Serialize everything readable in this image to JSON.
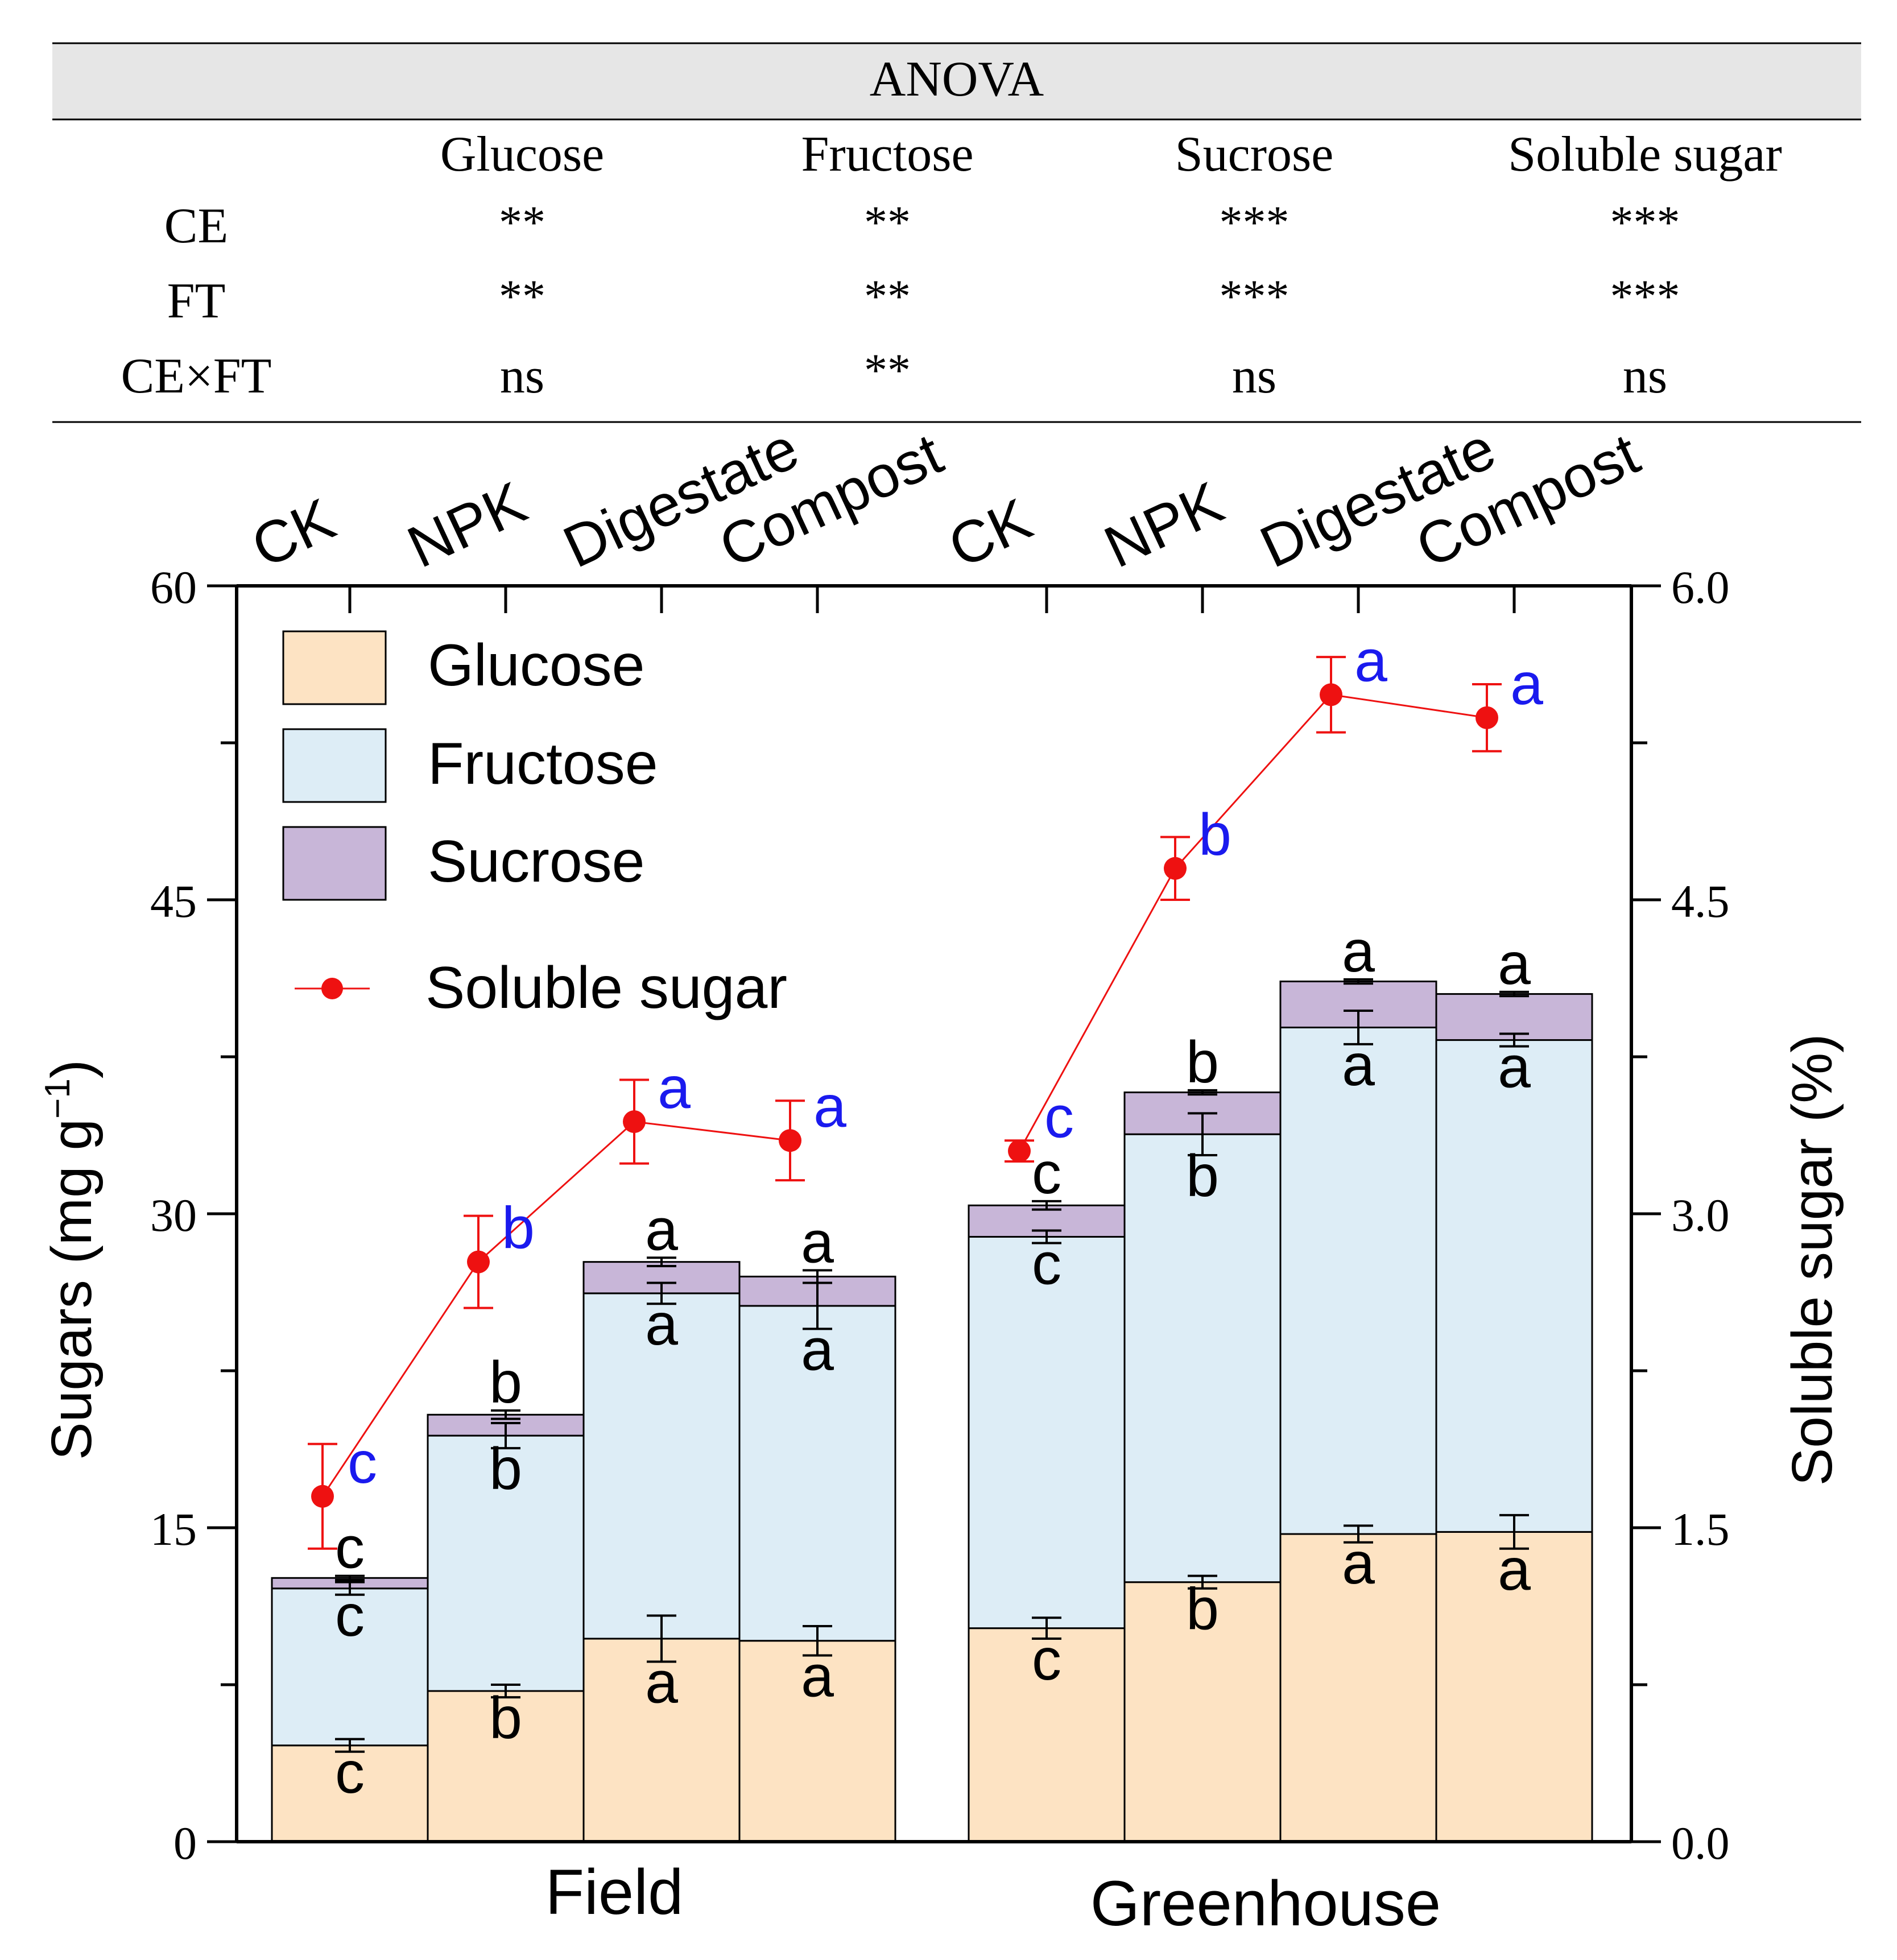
{
  "anova": {
    "title": "ANOVA",
    "columns": [
      "Glucose",
      "Fructose",
      "Sucrose",
      "Soluble sugar"
    ],
    "rows": [
      {
        "factor": "CE",
        "cells": [
          "**",
          "**",
          "***",
          "***"
        ]
      },
      {
        "factor": "FT",
        "cells": [
          "**",
          "**",
          "***",
          "***"
        ]
      },
      {
        "factor": "CE×FT",
        "cells": [
          "ns",
          "**",
          "ns",
          "ns"
        ]
      }
    ],
    "colors": {
      "header_bg": "#e6e6e6",
      "rule": "#000000"
    }
  },
  "chart_data": {
    "type": "bar",
    "subtype": "stacked bar with secondary-axis line",
    "groups": [
      "Field",
      "Greenhouse"
    ],
    "categories": [
      "CK",
      "NPK",
      "Digestate",
      "Compost",
      "CK",
      "NPK",
      "Digestate",
      "Compost"
    ],
    "ylabel": "Sugars (mg g",
    "ylabel_sup": "−1",
    "ylabel_close": ")",
    "y2label": "Soluble sugar (%)",
    "ylim": [
      0,
      60
    ],
    "y2lim": [
      0,
      6
    ],
    "yticks": [
      0,
      15,
      30,
      45,
      60
    ],
    "y2ticks": [
      "0.0",
      "1.5",
      "3.0",
      "4.5",
      "6.0"
    ],
    "series": [
      {
        "name": "Glucose",
        "color": "#fde3c3",
        "values": [
          4.6,
          7.2,
          9.7,
          9.6,
          10.2,
          12.4,
          14.7,
          14.8
        ],
        "errors": [
          0.3,
          0.3,
          1.1,
          0.7,
          0.5,
          0.3,
          0.4,
          0.8
        ],
        "letters": [
          "c",
          "b",
          "a",
          "a",
          "c",
          "b",
          "a",
          "a"
        ]
      },
      {
        "name": "Fructose",
        "color": "#ddedf6",
        "values": [
          7.5,
          12.2,
          16.5,
          16.0,
          18.7,
          21.4,
          24.2,
          23.5
        ],
        "errors": [
          0.3,
          0.6,
          0.5,
          1.1,
          0.3,
          1.0,
          0.8,
          0.3
        ],
        "letters": [
          "c",
          "b",
          "a",
          "a",
          "c",
          "b",
          "a",
          "a"
        ]
      },
      {
        "name": "Sucrose",
        "color": "#c8b6d8",
        "values": [
          0.5,
          1.0,
          1.5,
          1.4,
          1.5,
          2.0,
          2.2,
          2.2
        ],
        "errors": [
          0.1,
          0.2,
          0.2,
          0.3,
          0.2,
          0.1,
          0.1,
          0.1
        ],
        "letters": [
          "c",
          "b",
          "a",
          "a",
          "c",
          "b",
          "a",
          "a"
        ]
      }
    ],
    "line": {
      "name": "Soluble sugar",
      "color": "#ee1111",
      "values": [
        1.65,
        2.77,
        3.44,
        3.35,
        3.3,
        4.65,
        5.48,
        5.37
      ],
      "errors": [
        0.25,
        0.22,
        0.2,
        0.19,
        0.05,
        0.15,
        0.18,
        0.16
      ],
      "letters": [
        "c",
        "b",
        "a",
        "a",
        "c",
        "b",
        "a",
        "a"
      ],
      "letter_color": "#1a1aee"
    },
    "legend_position": "top-left"
  }
}
